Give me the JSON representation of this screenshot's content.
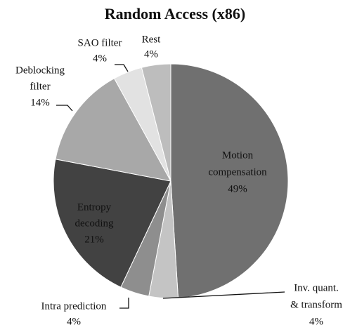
{
  "chart_data": {
    "type": "pie",
    "title": "Random Access (x86)",
    "categories": [
      [
        "Motion",
        "compensation"
      ],
      [
        "Inv. quant.",
        "& transform"
      ],
      [
        "Intra prediction"
      ],
      [
        "Entropy",
        "decoding"
      ],
      [
        "Deblocking",
        "filter"
      ],
      [
        "SAO filter"
      ],
      [
        "Rest"
      ]
    ],
    "values": [
      49,
      4,
      4,
      21,
      14,
      4,
      4
    ],
    "value_labels": [
      "49%",
      "4%",
      "4%",
      "21%",
      "14%",
      "4%",
      "4%"
    ],
    "colors": [
      "#707070",
      "#c4c4c4",
      "#8e8e8e",
      "#424242",
      "#a8a8a8",
      "#e2e2e2",
      "#bdbdbd"
    ]
  }
}
